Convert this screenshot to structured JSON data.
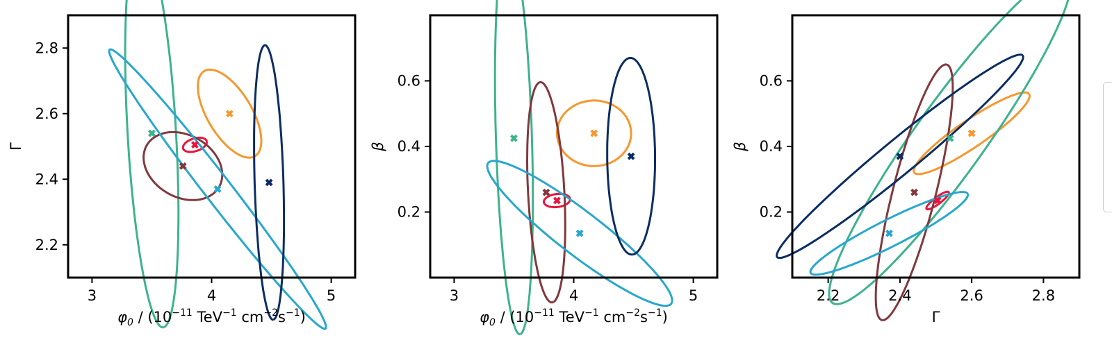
{
  "chart_data": [
    {
      "type": "scatter",
      "x_axis": {
        "label": "φ₀ / (10⁻¹¹ TeV⁻¹ cm⁻² s⁻¹)",
        "lim": [
          2.8,
          5.2
        ],
        "ticks": [
          3,
          4,
          5
        ],
        "tick_labels": [
          "3",
          "4",
          "5"
        ]
      },
      "y_axis": {
        "label": "Γ",
        "lim": [
          2.1,
          2.9
        ],
        "ticks": [
          2.2,
          2.4,
          2.6,
          2.8
        ],
        "tick_labels": [
          "2.2",
          "2.4",
          "2.6",
          "2.8"
        ]
      },
      "grid": false,
      "series": [
        {
          "color": "#e8143c",
          "point": [
            3.86,
            2.505
          ],
          "ellipse": {
            "rx": 0.1,
            "ry": 0.02,
            "angle_deg": 5
          }
        },
        {
          "color": "#f7972f",
          "point": [
            4.15,
            2.6
          ],
          "ellipse": {
            "rx": 0.28,
            "ry": 0.1,
            "angle_deg": -20
          }
        },
        {
          "color": "#3db38d",
          "point": [
            3.5,
            2.54
          ],
          "ellipse": {
            "rx": 0.6,
            "ry": 0.2,
            "angle_deg": -80
          }
        },
        {
          "color": "#81393d",
          "point": [
            3.76,
            2.44
          ],
          "ellipse": {
            "rx": 0.33,
            "ry": 0.1,
            "angle_deg": -5
          }
        },
        {
          "color": "#27a7cf",
          "point": [
            4.05,
            2.37
          ],
          "ellipse": {
            "rx": 1.0,
            "ry": 0.06,
            "angle_deg": -25
          }
        },
        {
          "color": "#0b2d63",
          "point": [
            4.48,
            2.39
          ],
          "ellipse": {
            "rx": 0.42,
            "ry": 0.12,
            "angle_deg": -85
          }
        }
      ]
    },
    {
      "type": "scatter",
      "x_axis": {
        "label": "φ₀ / (10⁻¹¹ TeV⁻¹ cm⁻² s⁻¹)",
        "lim": [
          2.8,
          5.2
        ],
        "ticks": [
          3,
          4,
          5
        ],
        "tick_labels": [
          "3",
          "4",
          "5"
        ]
      },
      "y_axis": {
        "label": "β",
        "lim": [
          0.0,
          0.8
        ],
        "ticks": [
          0.2,
          0.4,
          0.6
        ],
        "tick_labels": [
          "0.2",
          "0.4",
          "0.6"
        ]
      },
      "grid": false,
      "series": [
        {
          "color": "#e8143c",
          "point": [
            3.86,
            0.235
          ],
          "ellipse": {
            "rx": 0.11,
            "ry": 0.02,
            "angle_deg": 2
          }
        },
        {
          "color": "#f7972f",
          "point": [
            4.17,
            0.44
          ],
          "ellipse": {
            "rx": 0.31,
            "ry": 0.1,
            "angle_deg": 0
          }
        },
        {
          "color": "#3db38d",
          "point": [
            3.5,
            0.425
          ],
          "ellipse": {
            "rx": 0.6,
            "ry": 0.15,
            "angle_deg": -85
          }
        },
        {
          "color": "#81393d",
          "point": [
            3.77,
            0.26
          ],
          "ellipse": {
            "rx": 0.34,
            "ry": 0.15,
            "angle_deg": -80
          }
        },
        {
          "color": "#27a7cf",
          "point": [
            4.05,
            0.135
          ],
          "ellipse": {
            "rx": 0.8,
            "ry": 0.08,
            "angle_deg": -15
          }
        },
        {
          "color": "#0b2d63",
          "point": [
            4.48,
            0.37
          ],
          "ellipse": {
            "rx": 0.3,
            "ry": 0.2,
            "angle_deg": -88
          }
        }
      ]
    },
    {
      "type": "scatter",
      "x_axis": {
        "label": "Γ",
        "lim": [
          2.1,
          2.9
        ],
        "ticks": [
          2.2,
          2.4,
          2.6,
          2.8
        ],
        "tick_labels": [
          "2.2",
          "2.4",
          "2.6",
          "2.8"
        ]
      },
      "y_axis": {
        "label": "β",
        "lim": [
          0.0,
          0.8
        ],
        "ticks": [
          0.2,
          0.4,
          0.6
        ],
        "tick_labels": [
          "0.2",
          "0.4",
          "0.6"
        ]
      },
      "grid": false,
      "series": [
        {
          "color": "#e8143c",
          "point": [
            2.505,
            0.235
          ],
          "ellipse": {
            "rx": 0.04,
            "ry": 0.01,
            "angle_deg": 40
          }
        },
        {
          "color": "#f7972f",
          "point": [
            2.6,
            0.44
          ],
          "ellipse": {
            "rx": 0.2,
            "ry": 0.04,
            "angle_deg": 37
          }
        },
        {
          "color": "#3db38d",
          "point": [
            2.54,
            0.425
          ],
          "ellipse": {
            "rx": 0.6,
            "ry": 0.1,
            "angle_deg": 57
          }
        },
        {
          "color": "#81393d",
          "point": [
            2.44,
            0.26
          ],
          "ellipse": {
            "rx": 0.4,
            "ry": 0.06,
            "angle_deg": 77
          }
        },
        {
          "color": "#27a7cf",
          "point": [
            2.37,
            0.135
          ],
          "ellipse": {
            "rx": 0.25,
            "ry": 0.04,
            "angle_deg": 29
          }
        },
        {
          "color": "#0b2d63",
          "point": [
            2.4,
            0.37
          ],
          "ellipse": {
            "rx": 0.46,
            "ry": 0.05,
            "angle_deg": 42
          }
        }
      ]
    }
  ]
}
